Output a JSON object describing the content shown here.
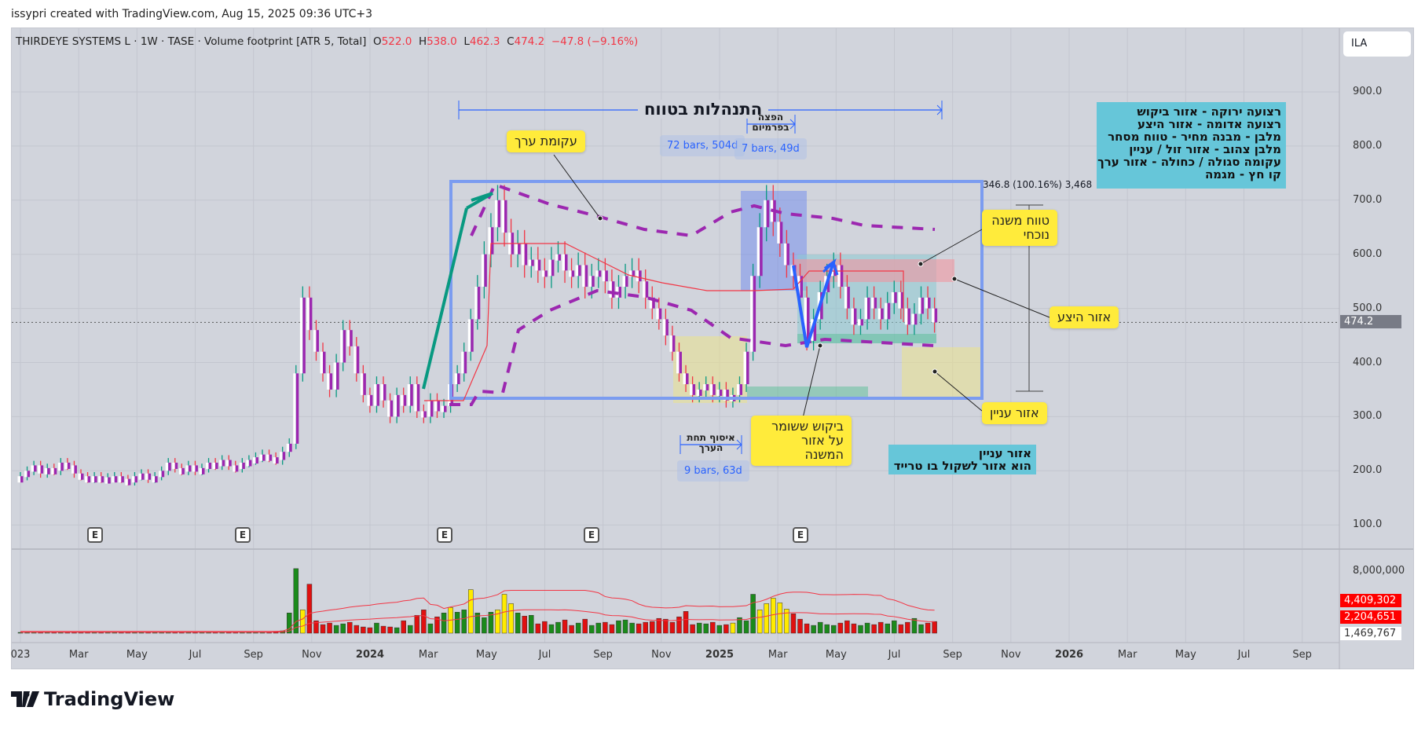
{
  "credit": "issypri created with TradingView.com, Aug 15, 2025 09:36 UTC+3",
  "legend": {
    "title": "THIRDEYE SYSTEMS L · 1W · TASE · Volume footprint [ATR 5, Total]",
    "o_label": "O",
    "o": "522.0",
    "h_label": "H",
    "h": "538.0",
    "l_label": "L",
    "l": "462.3",
    "c_label": "C",
    "c": "474.2",
    "change": "−47.8 (−9.16%)"
  },
  "symbol_box": "ILA",
  "price_axis": [
    "900.0",
    "800.0",
    "700.0",
    "600.0",
    "500.0",
    "400.0",
    "300.0",
    "200.0",
    "100.0"
  ],
  "last_price": "474.2",
  "volume_axis": {
    "top": "8,000,000",
    "ma_long": "4,409,302",
    "ma_short": "2,204,651",
    "current": "1,469,767"
  },
  "time_axis": [
    {
      "t": "023",
      "m": 0
    },
    {
      "t": "Mar",
      "m": 2
    },
    {
      "t": "May",
      "m": 4
    },
    {
      "t": "Jul",
      "m": 6
    },
    {
      "t": "Sep",
      "m": 8
    },
    {
      "t": "Nov",
      "m": 10
    },
    {
      "t": "2024",
      "m": 12,
      "bold": true
    },
    {
      "t": "Mar",
      "m": 14
    },
    {
      "t": "May",
      "m": 16
    },
    {
      "t": "Jul",
      "m": 18
    },
    {
      "t": "Sep",
      "m": 20
    },
    {
      "t": "Nov",
      "m": 22
    },
    {
      "t": "2025",
      "m": 24,
      "bold": true
    },
    {
      "t": "Mar",
      "m": 26
    },
    {
      "t": "May",
      "m": 28
    },
    {
      "t": "Jul",
      "m": 30
    },
    {
      "t": "Sep",
      "m": 32
    },
    {
      "t": "Nov",
      "m": 34
    },
    {
      "t": "2026",
      "m": 36,
      "bold": true
    },
    {
      "t": "Mar",
      "m": 38
    },
    {
      "t": "May",
      "m": 40
    },
    {
      "t": "Jul",
      "m": 42
    },
    {
      "t": "Sep",
      "m": 44
    }
  ],
  "annotations": {
    "range_title": "התנהלות בטווח",
    "premium_dist": "הפצה בפרמיום",
    "bars_72": "72 bars, 504d",
    "bars_7": "7 bars, 49d",
    "value_curve": "עקומת ערך",
    "measure": "346.8 (100.16%) 3,468",
    "sub_range": "טווח משנה נוכחי",
    "supply_zone": "אזור היצע",
    "interest_zone": "אזור עניין",
    "demand_hold": "ביקוש ששומר על אזור המשנה",
    "accumulation": "איסוף תחת הערך",
    "bars_9": "9 bars, 63d",
    "interest_note_1": "אזור עניין",
    "interest_note_2": "הוא אזור לשקול בו טרייד",
    "key": [
      "רצועה ירוקה - אזור ביקוש",
      "רצועה אדומה - אזור היצע",
      "מלבן - מבנה מחיר - טווח מסחר",
      "מלבן צהוב - אזור זול / עניין",
      "עקומה סגולה / כחולה - אזור ערך",
      "קו חץ - מגמה"
    ]
  },
  "earnings_badge": "E",
  "logo": "TradingView",
  "colors": {
    "purple": "#9c27b0",
    "teal": "#089981",
    "red": "#f23645",
    "yellow": "#ffeb3b",
    "blue": "#2962ff",
    "cyan": "#66c6d9"
  },
  "chart_data": {
    "type": "candlestick",
    "interval": "1W",
    "start": "2023-01-01",
    "ylim": [
      0,
      950
    ],
    "closes": [
      190,
      200,
      210,
      195,
      205,
      200,
      215,
      210,
      195,
      190,
      185,
      190,
      185,
      188,
      190,
      185,
      180,
      190,
      195,
      185,
      190,
      200,
      215,
      205,
      200,
      210,
      200,
      205,
      215,
      210,
      220,
      210,
      205,
      215,
      220,
      225,
      230,
      225,
      220,
      235,
      250,
      380,
      520,
      460,
      420,
      380,
      350,
      400,
      460,
      430,
      380,
      340,
      320,
      360,
      330,
      300,
      340,
      320,
      360,
      310,
      300,
      330,
      310,
      320,
      360,
      380,
      420,
      480,
      540,
      600,
      650,
      700,
      640,
      600,
      620,
      580,
      590,
      570,
      560,
      590,
      600,
      570,
      560,
      580,
      540,
      560,
      570,
      550,
      520,
      540,
      560,
      570,
      550,
      520,
      500,
      480,
      450,
      420,
      380,
      360,
      340,
      350,
      360,
      340,
      350,
      330,
      340,
      360,
      420,
      560,
      650,
      700,
      660,
      620,
      580,
      560,
      520,
      440,
      480,
      530,
      560,
      580,
      540,
      500,
      470,
      480,
      520,
      500,
      480,
      510,
      530,
      500,
      470,
      490,
      520,
      500,
      474.2
    ],
    "volume_millions": [
      0.1,
      0.1,
      0.1,
      0.1,
      0.1,
      0.1,
      0.1,
      0.1,
      0.1,
      0.1,
      0.1,
      0.1,
      0.1,
      0.1,
      0.1,
      0.1,
      0.1,
      0.1,
      0.1,
      0.1,
      0.1,
      0.1,
      0.1,
      0.1,
      0.1,
      0.1,
      0.1,
      0.1,
      0.1,
      0.1,
      0.1,
      0.1,
      0.1,
      0.1,
      0.1,
      0.1,
      0.1,
      0.1,
      0.2,
      0.3,
      2.6,
      8.3,
      3.0,
      6.3,
      1.6,
      1.1,
      1.3,
      1.0,
      1.2,
      1.4,
      1.0,
      0.8,
      0.7,
      1.3,
      0.9,
      0.8,
      0.7,
      1.6,
      1.0,
      2.3,
      3.0,
      1.2,
      2.1,
      2.6,
      3.3,
      2.7,
      3.0,
      5.6,
      2.6,
      2.0,
      2.7,
      3.0,
      5.0,
      3.8,
      2.6,
      2.2,
      2.3,
      1.2,
      1.5,
      1.1,
      1.4,
      1.7,
      1.0,
      1.3,
      1.8,
      1.0,
      1.3,
      1.4,
      1.1,
      1.6,
      1.7,
      1.3,
      1.2,
      1.4,
      1.5,
      1.9,
      1.8,
      1.4,
      2.1,
      2.8,
      1.1,
      1.3,
      1.2,
      1.4,
      1.0,
      1.1,
      1.3,
      2.0,
      1.6,
      5.0,
      3.0,
      3.8,
      4.5,
      3.9,
      3.1,
      2.5,
      1.8,
      1.2,
      1.0,
      1.4,
      1.1,
      1.0,
      1.3,
      1.6,
      1.2,
      1.0,
      1.3,
      1.1,
      1.4,
      1.2,
      1.6,
      1.1,
      1.4,
      1.9,
      1.1,
      1.3,
      1.5
    ],
    "high_volume_yellow": [
      42,
      64,
      67,
      71,
      72,
      73,
      106,
      110,
      111,
      112,
      113,
      114
    ]
  }
}
